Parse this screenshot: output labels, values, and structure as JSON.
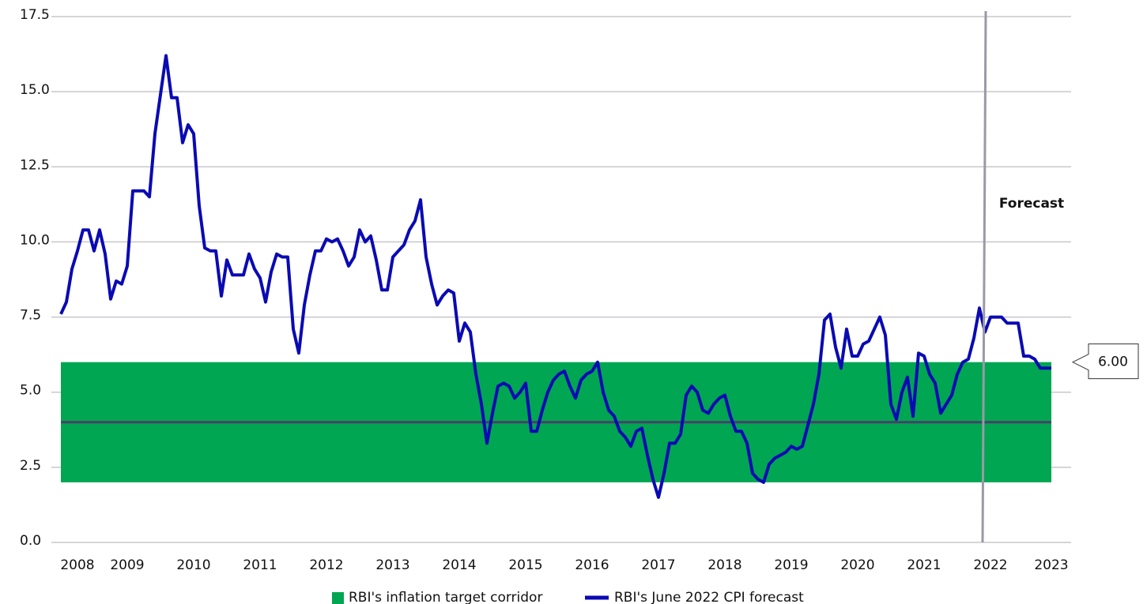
{
  "chart_data": {
    "type": "line",
    "categories": [
      null,
      null,
      null,
      "2008",
      null,
      null,
      null,
      null,
      null,
      null,
      null,
      null,
      "2009",
      null,
      null,
      null,
      null,
      null,
      null,
      null,
      null,
      null,
      null,
      null,
      "2010",
      null,
      null,
      null,
      null,
      null,
      null,
      null,
      null,
      null,
      null,
      null,
      "2011",
      null,
      null,
      null,
      null,
      null,
      null,
      null,
      null,
      null,
      null,
      null,
      "2012",
      null,
      null,
      null,
      null,
      null,
      null,
      null,
      null,
      null,
      null,
      null,
      "2013",
      null,
      null,
      null,
      null,
      null,
      null,
      null,
      null,
      null,
      null,
      null,
      "2014",
      null,
      null,
      null,
      null,
      null,
      null,
      null,
      null,
      null,
      null,
      null,
      "2015",
      null,
      null,
      null,
      null,
      null,
      null,
      null,
      null,
      null,
      null,
      null,
      "2016",
      null,
      null,
      null,
      null,
      null,
      null,
      null,
      null,
      null,
      null,
      null,
      "2017",
      null,
      null,
      null,
      null,
      null,
      null,
      null,
      null,
      null,
      null,
      null,
      "2018",
      null,
      null,
      null,
      null,
      null,
      null,
      null,
      null,
      null,
      null,
      null,
      "2019",
      null,
      null,
      null,
      null,
      null,
      null,
      null,
      null,
      null,
      null,
      null,
      "2020",
      null,
      null,
      null,
      null,
      null,
      null,
      null,
      null,
      null,
      null,
      null,
      "2021",
      null,
      null,
      null,
      null,
      null,
      null,
      null,
      null,
      null,
      null,
      null,
      "2022",
      null,
      null,
      null,
      null,
      null,
      null,
      null,
      null,
      null,
      null,
      "2023"
    ],
    "series": [
      {
        "name": "RBI's June 2022 CPI forecast",
        "color": "#0a0ab4",
        "values": [
          7.6,
          8.0,
          9.1,
          9.7,
          10.4,
          10.4,
          9.7,
          10.4,
          9.6,
          8.1,
          8.7,
          8.6,
          9.2,
          11.7,
          11.7,
          11.7,
          11.5,
          13.6,
          14.9,
          16.2,
          14.8,
          14.8,
          13.3,
          13.9,
          13.6,
          11.2,
          9.8,
          9.7,
          9.7,
          8.2,
          9.4,
          8.9,
          8.9,
          8.9,
          9.6,
          9.1,
          8.8,
          8.0,
          9.0,
          9.6,
          9.5,
          9.5,
          7.1,
          6.3,
          7.9,
          8.9,
          9.7,
          9.7,
          10.1,
          10.0,
          10.1,
          9.7,
          9.2,
          9.5,
          10.4,
          10.0,
          10.2,
          9.4,
          8.4,
          8.4,
          9.5,
          9.7,
          9.9,
          10.4,
          10.7,
          11.4,
          9.5,
          8.6,
          7.9,
          8.2,
          8.4,
          8.3,
          6.7,
          7.3,
          7.0,
          5.6,
          4.6,
          3.3,
          4.3,
          5.2,
          5.3,
          5.2,
          4.8,
          5.0,
          5.3,
          3.7,
          3.7,
          4.4,
          5.0,
          5.4,
          5.6,
          5.7,
          5.2,
          4.8,
          5.4,
          5.6,
          5.7,
          6.0,
          5.0,
          4.4,
          4.2,
          3.7,
          3.5,
          3.2,
          3.7,
          3.8,
          2.9,
          2.1,
          1.5,
          2.3,
          3.3,
          3.3,
          3.6,
          4.9,
          5.2,
          5.0,
          4.4,
          4.3,
          4.6,
          4.8,
          4.9,
          4.2,
          3.7,
          3.7,
          3.3,
          2.3,
          2.1,
          2.0,
          2.6,
          2.8,
          2.9,
          3.0,
          3.2,
          3.1,
          3.2,
          3.9,
          4.6,
          5.6,
          7.4,
          7.6,
          6.5,
          5.8,
          7.1,
          6.2,
          6.2,
          6.6,
          6.7,
          7.1,
          7.5,
          6.9,
          4.6,
          4.1,
          5.0,
          5.5,
          4.2,
          6.3,
          6.2,
          5.6,
          5.3,
          4.3,
          4.6,
          4.9,
          5.6,
          6.0,
          6.1,
          6.8,
          7.8,
          7.0,
          7.5,
          7.5,
          7.5,
          7.3,
          7.3,
          7.3,
          6.2,
          6.2,
          6.1,
          5.8,
          5.8,
          5.8
        ]
      }
    ],
    "corridor": {
      "name": "RBI's inflation target corridor",
      "color": "#00a651",
      "low": 2,
      "high": 6,
      "high_label": "6.00",
      "mid": 4,
      "mid_color": "#4a3f6b"
    },
    "forecast_label": "Forecast",
    "forecast_from": "2022",
    "ylim": [
      0,
      17.5
    ],
    "yticks": [
      {
        "value": 0,
        "label": "0.0"
      },
      2.5,
      {
        "value": 5,
        "label": "5.0"
      },
      7.5,
      {
        "value": 10,
        "label": "10.0"
      },
      12.5,
      {
        "value": 15,
        "label": "15.0"
      },
      17.5
    ],
    "grid": true
  }
}
